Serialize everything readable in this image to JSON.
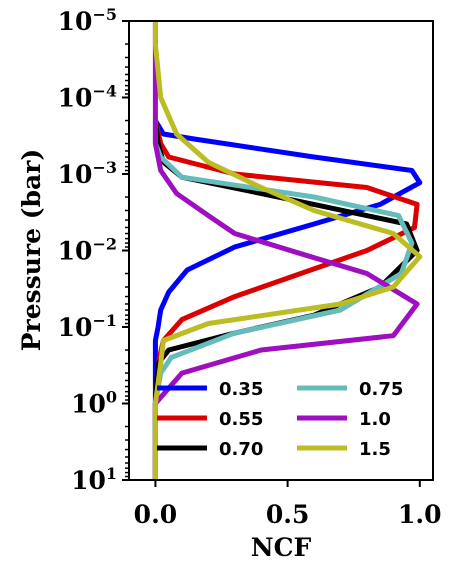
{
  "chart_data": {
    "type": "line",
    "xlabel": "NCF",
    "ylabel": "Pressure (bar)",
    "xlim": [
      -0.1,
      1.05
    ],
    "ylim": [
      1e-05,
      10
    ],
    "y_scale": "log",
    "y_inverted": true,
    "grid": false,
    "legend_position": "lower-center",
    "legend_columns": 2,
    "x_ticks": [
      {
        "value": 0.0,
        "label": "0.0"
      },
      {
        "value": 0.5,
        "label": "0.5"
      },
      {
        "value": 1.0,
        "label": "1.0"
      }
    ],
    "y_ticks": [
      {
        "value": 1e-05,
        "base": "10",
        "exp": "−5"
      },
      {
        "value": 0.0001,
        "base": "10",
        "exp": "−4"
      },
      {
        "value": 0.001,
        "base": "10",
        "exp": "−3"
      },
      {
        "value": 0.01,
        "base": "10",
        "exp": "−2"
      },
      {
        "value": 0.1,
        "base": "10",
        "exp": "−1"
      },
      {
        "value": 1,
        "base": "10",
        "exp": "0"
      },
      {
        "value": 10,
        "base": "10",
        "exp": "1"
      }
    ],
    "series": [
      {
        "name": "0.35",
        "color": "#0000ff",
        "points": [
          [
            0.0,
            10
          ],
          [
            0.0,
            1.0
          ],
          [
            0.0,
            0.3
          ],
          [
            0.0,
            0.15
          ],
          [
            0.01,
            0.1
          ],
          [
            0.02,
            0.06
          ],
          [
            0.05,
            0.035
          ],
          [
            0.12,
            0.018
          ],
          [
            0.3,
            0.009
          ],
          [
            0.6,
            0.0045
          ],
          [
            0.85,
            0.0025
          ],
          [
            1.0,
            0.0013
          ],
          [
            0.97,
            0.0009
          ],
          [
            0.6,
            0.0006
          ],
          [
            0.15,
            0.00035
          ],
          [
            0.03,
            0.0003
          ],
          [
            0.0,
            0.0002
          ]
        ]
      },
      {
        "name": "0.55",
        "color": "#dd0000",
        "points": [
          [
            0.0,
            10
          ],
          [
            0.0,
            1.0
          ],
          [
            0.01,
            0.3
          ],
          [
            0.03,
            0.15
          ],
          [
            0.1,
            0.08
          ],
          [
            0.3,
            0.04
          ],
          [
            0.55,
            0.02
          ],
          [
            0.8,
            0.01
          ],
          [
            0.98,
            0.005
          ],
          [
            0.99,
            0.0025
          ],
          [
            0.8,
            0.0015
          ],
          [
            0.3,
            0.001
          ],
          [
            0.05,
            0.0006
          ],
          [
            0.02,
            0.0004
          ],
          [
            0.0,
            0.0002
          ]
        ]
      },
      {
        "name": "0.70",
        "color": "#000000",
        "points": [
          [
            0.0,
            10
          ],
          [
            0.0,
            1.0
          ],
          [
            0.01,
            0.3
          ],
          [
            0.05,
            0.2
          ],
          [
            0.3,
            0.12
          ],
          [
            0.6,
            0.07
          ],
          [
            0.85,
            0.03
          ],
          [
            0.99,
            0.01
          ],
          [
            0.95,
            0.0045
          ],
          [
            0.6,
            0.0025
          ],
          [
            0.1,
            0.0011
          ],
          [
            0.03,
            0.0007
          ],
          [
            0.01,
            0.0004
          ],
          [
            0.0,
            0.0002
          ]
        ]
      },
      {
        "name": "0.75",
        "color": "#66bbbb",
        "points": [
          [
            0.0,
            10
          ],
          [
            0.0,
            1.0
          ],
          [
            0.02,
            0.4
          ],
          [
            0.06,
            0.25
          ],
          [
            0.3,
            0.12
          ],
          [
            0.7,
            0.06
          ],
          [
            0.93,
            0.02
          ],
          [
            0.97,
            0.008
          ],
          [
            0.92,
            0.0035
          ],
          [
            0.6,
            0.002
          ],
          [
            0.1,
            0.0011
          ],
          [
            0.02,
            0.0006
          ],
          [
            0.0,
            0.0004
          ],
          [
            0.0,
            0.0002
          ]
        ]
      },
      {
        "name": "1.0",
        "color": "#9e0fbf",
        "points": [
          [
            0.0,
            10
          ],
          [
            0.0,
            1.0
          ],
          [
            0.1,
            0.4
          ],
          [
            0.4,
            0.2
          ],
          [
            0.9,
            0.13
          ],
          [
            0.99,
            0.05
          ],
          [
            0.8,
            0.02
          ],
          [
            0.55,
            0.011
          ],
          [
            0.3,
            0.006
          ],
          [
            0.2,
            0.0035
          ],
          [
            0.08,
            0.0018
          ],
          [
            0.02,
            0.0009
          ],
          [
            0.0,
            0.0004
          ],
          [
            0.0,
            0.0001
          ],
          [
            0.0,
            2e-05
          ],
          [
            0.0,
            1e-05
          ]
        ]
      },
      {
        "name": "1.5",
        "color": "#bcbd22",
        "points": [
          [
            0.0,
            10
          ],
          [
            0.0,
            1.0
          ],
          [
            0.02,
            0.3
          ],
          [
            0.03,
            0.15
          ],
          [
            0.2,
            0.09
          ],
          [
            0.7,
            0.05
          ],
          [
            0.9,
            0.03
          ],
          [
            1.0,
            0.012
          ],
          [
            0.9,
            0.006
          ],
          [
            0.6,
            0.003
          ],
          [
            0.4,
            0.0015
          ],
          [
            0.2,
            0.0007
          ],
          [
            0.08,
            0.0003
          ],
          [
            0.02,
            0.0001
          ],
          [
            0.0,
            2e-05
          ],
          [
            0.0,
            1e-05
          ]
        ]
      }
    ]
  }
}
